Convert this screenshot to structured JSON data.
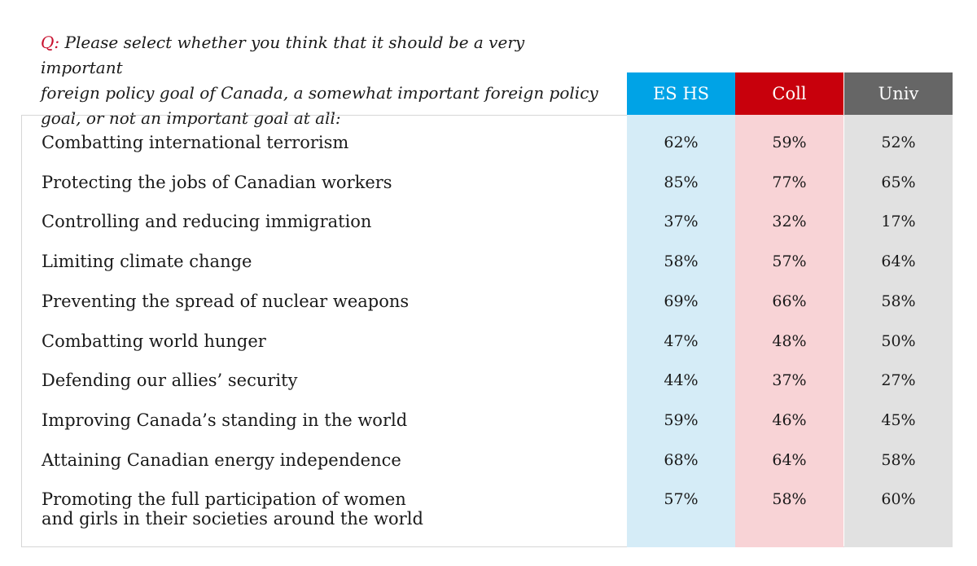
{
  "question": {
    "prefix": "Q:",
    "text": " Please select whether you think that it should be a very important\nforeign policy goal of Canada, a somewhat important foreign policy\ngoal, or not an important goal at all:"
  },
  "colors": {
    "es_hs_header": "#00a3e6",
    "es_hs_fill": "#d5ecf7",
    "coll_header": "#c8000c",
    "coll_fill": "#f8d3d6",
    "univ_header": "#666666",
    "univ_fill": "#e1e1e1"
  },
  "chart_data": {
    "type": "table",
    "columns": [
      "ES HS",
      "Coll",
      "Univ"
    ],
    "rows": [
      {
        "label": "Combatting international terrorism",
        "values": [
          "62%",
          "59%",
          "52%"
        ]
      },
      {
        "label": "Protecting the jobs of Canadian workers",
        "values": [
          "85%",
          "77%",
          "65%"
        ]
      },
      {
        "label": "Controlling and reducing immigration",
        "values": [
          "37%",
          "32%",
          "17%"
        ]
      },
      {
        "label": "Limiting climate change",
        "values": [
          "58%",
          "57%",
          "64%"
        ]
      },
      {
        "label": "Preventing the spread of nuclear weapons",
        "values": [
          "69%",
          "66%",
          "58%"
        ]
      },
      {
        "label": "Combatting world hunger",
        "values": [
          "47%",
          "48%",
          "50%"
        ]
      },
      {
        "label": "Defending our allies’ security",
        "values": [
          "44%",
          "37%",
          "27%"
        ]
      },
      {
        "label": "Improving Canada’s standing in the world",
        "values": [
          "59%",
          "46%",
          "45%"
        ]
      },
      {
        "label": "Attaining Canadian energy independence",
        "values": [
          "68%",
          "64%",
          "58%"
        ]
      },
      {
        "label": "Promoting the full participation of women\nand girls in their societies around the world",
        "values": [
          "57%",
          "58%",
          "60%"
        ]
      }
    ]
  }
}
